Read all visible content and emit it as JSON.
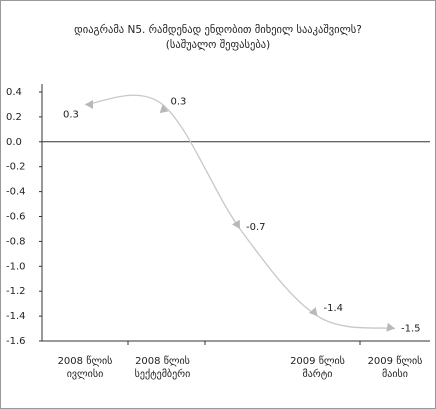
{
  "chart_data": {
    "type": "line",
    "title": "დიაგრამა N5. რამდენად ენდობით მიხეილ სააკაშვილს?",
    "subtitle": "(საშუალო შეფასება)",
    "categories": [
      [
        "2008 წლის",
        "ივლისი"
      ],
      [
        "2008 წლის",
        "სექტემბერი"
      ],
      null,
      [
        "2009 წლის",
        "მარტი"
      ],
      [
        "2009 წლის",
        "მაისი"
      ]
    ],
    "values": [
      0.3,
      0.3,
      -0.7,
      -1.4,
      -1.5
    ],
    "color": "#c8c8c8",
    "ylim": [
      -1.6,
      0.4
    ],
    "yticks": [
      {
        "value": -1.6,
        "label": "-1.6"
      },
      {
        "value": -1.4,
        "label": "-1.4"
      },
      {
        "value": -1.2,
        "label": "-1.2"
      },
      {
        "value": -1,
        "label": "-1.0"
      },
      {
        "value": -0.8,
        "label": "-0.8"
      },
      {
        "value": -0.6,
        "label": "-0.6"
      },
      {
        "value": -0.4,
        "label": "-0.4"
      },
      {
        "value": -0.2,
        "label": "-0.2"
      },
      {
        "value": 0,
        "label": "0.0"
      },
      0.2,
      0.4
    ]
  }
}
